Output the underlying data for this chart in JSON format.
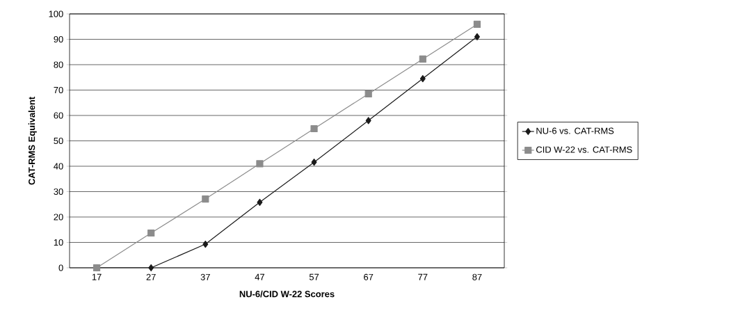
{
  "chart_data": {
    "type": "line",
    "xlabel": "NU-6/CID W-22 Scores",
    "ylabel": "CAT-RMS Equivalent",
    "categories": [
      "17",
      "27",
      "37",
      "47",
      "57",
      "67",
      "77",
      "87"
    ],
    "series": [
      {
        "name": "NU-6 vs. CAT-RMS",
        "color": "#1a1a1a",
        "marker": "diamond",
        "values": [
          0,
          0,
          9.3,
          25.8,
          41.6,
          58,
          74.5,
          91
        ]
      },
      {
        "name": "CID W-22 vs. CAT-RMS",
        "color": "#8c8c8c",
        "marker": "square",
        "values": [
          0,
          13.7,
          27.1,
          41,
          54.8,
          68.5,
          82.2,
          95.9
        ]
      }
    ],
    "ylim": [
      0,
      100
    ],
    "yticks": [
      0,
      10,
      20,
      30,
      40,
      50,
      60,
      70,
      80,
      90,
      100
    ],
    "grid": "y",
    "legend": "right",
    "line_style": "solid"
  }
}
